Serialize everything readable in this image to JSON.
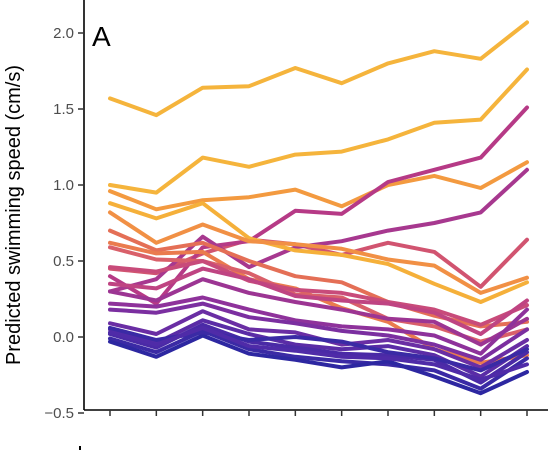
{
  "chart_data": {
    "type": "line",
    "panel_label": "A",
    "ylabel": "Predicted swimming speed (cm/s)",
    "xlabel": "",
    "ylim": [
      -0.5,
      2.2
    ],
    "yticks": [
      -0.5,
      0.0,
      0.5,
      1.0,
      1.5,
      2.0
    ],
    "ytick_labels": [
      "−0.5",
      "0.0",
      "0.5",
      "1.0",
      "1.5",
      "2.0"
    ],
    "x": [
      1,
      2,
      3,
      4,
      5,
      6,
      7,
      8,
      9,
      10
    ],
    "grid": false,
    "legend": "none",
    "series": [
      {
        "color": "#f5b43c",
        "values": [
          1.57,
          1.46,
          1.64,
          1.65,
          1.77,
          1.67,
          1.8,
          1.88,
          1.83,
          2.07
        ]
      },
      {
        "color": "#f5b43c",
        "values": [
          1.0,
          0.95,
          1.18,
          1.12,
          1.2,
          1.22,
          1.3,
          1.41,
          1.43,
          1.76
        ]
      },
      {
        "color": "#f39a40",
        "values": [
          0.96,
          0.84,
          0.9,
          0.92,
          0.97,
          0.86,
          1.0,
          1.06,
          0.98,
          1.15
        ]
      },
      {
        "color": "#d15470",
        "values": [
          0.45,
          0.42,
          0.55,
          0.64,
          0.61,
          0.54,
          0.62,
          0.56,
          0.33,
          0.64
        ]
      },
      {
        "color": "#b63a86",
        "values": [
          0.4,
          0.22,
          0.59,
          0.63,
          0.83,
          0.81,
          1.02,
          1.1,
          1.18,
          1.51
        ]
      },
      {
        "color": "#a7388f",
        "values": [
          0.3,
          0.38,
          0.66,
          0.46,
          0.59,
          0.63,
          0.7,
          0.75,
          0.82,
          1.1
        ]
      },
      {
        "color": "#f5b03a",
        "values": [
          0.88,
          0.78,
          0.88,
          0.65,
          0.57,
          0.54,
          0.48,
          0.35,
          0.23,
          0.36
        ]
      },
      {
        "color": "#f19045",
        "values": [
          0.82,
          0.62,
          0.74,
          0.63,
          0.61,
          0.58,
          0.51,
          0.47,
          0.29,
          0.39
        ]
      },
      {
        "color": "#e46f56",
        "values": [
          0.7,
          0.57,
          0.62,
          0.5,
          0.4,
          0.36,
          0.23,
          0.14,
          0.07,
          0.1
        ]
      },
      {
        "color": "#ea7b4e",
        "values": [
          0.62,
          0.55,
          0.56,
          0.38,
          0.32,
          0.19,
          0.1,
          -0.08,
          -0.17,
          -0.12
        ]
      },
      {
        "color": "#d9606a",
        "values": [
          0.59,
          0.51,
          0.5,
          0.42,
          0.28,
          0.26,
          0.12,
          0.07,
          -0.03,
          0.05
        ]
      },
      {
        "color": "#c84b7a",
        "values": [
          0.46,
          0.43,
          0.5,
          0.37,
          0.31,
          0.29,
          0.23,
          0.18,
          0.08,
          0.21
        ]
      },
      {
        "color": "#bf4482",
        "values": [
          0.35,
          0.32,
          0.45,
          0.38,
          0.27,
          0.24,
          0.22,
          0.16,
          0.02,
          0.24
        ]
      },
      {
        "color": "#9c3593",
        "values": [
          0.3,
          0.24,
          0.38,
          0.29,
          0.23,
          0.18,
          0.12,
          0.1,
          -0.05,
          0.12
        ]
      },
      {
        "color": "#8e329b",
        "values": [
          0.22,
          0.2,
          0.26,
          0.18,
          0.11,
          0.07,
          0.05,
          0.01,
          -0.11,
          0.18
        ]
      },
      {
        "color": "#7b2fa0",
        "values": [
          0.18,
          0.16,
          0.22,
          0.13,
          0.09,
          0.04,
          0.01,
          -0.05,
          -0.15,
          0.05
        ]
      },
      {
        "color": "#6a2ea4",
        "values": [
          0.09,
          0.02,
          0.17,
          0.05,
          0.03,
          -0.05,
          -0.02,
          -0.08,
          -0.2,
          -0.02
        ]
      },
      {
        "color": "#5a2ca6",
        "values": [
          0.05,
          -0.04,
          0.11,
          0.02,
          -0.05,
          -0.08,
          -0.06,
          -0.12,
          -0.26,
          -0.06
        ]
      },
      {
        "color": "#4a2aa6",
        "values": [
          0.02,
          -0.07,
          0.08,
          -0.03,
          -0.07,
          -0.11,
          -0.12,
          -0.15,
          -0.3,
          -0.1
        ]
      },
      {
        "color": "#3b2aa5",
        "values": [
          -0.01,
          -0.1,
          0.04,
          -0.08,
          -0.13,
          -0.16,
          -0.18,
          -0.22,
          -0.34,
          -0.14
        ]
      },
      {
        "color": "#2d27a1",
        "values": [
          -0.03,
          -0.13,
          0.01,
          -0.11,
          -0.15,
          -0.2,
          -0.16,
          -0.26,
          -0.37,
          -0.23
        ]
      },
      {
        "color": "#3a2aa5",
        "values": [
          0.06,
          -0.02,
          0.03,
          -0.02,
          0.0,
          -0.03,
          -0.1,
          -0.14,
          -0.22,
          -0.08
        ]
      },
      {
        "color": "#4f2ba8",
        "values": [
          0.03,
          -0.05,
          0.06,
          -0.06,
          -0.09,
          -0.13,
          -0.14,
          -0.18,
          -0.28,
          -0.18
        ]
      }
    ]
  }
}
